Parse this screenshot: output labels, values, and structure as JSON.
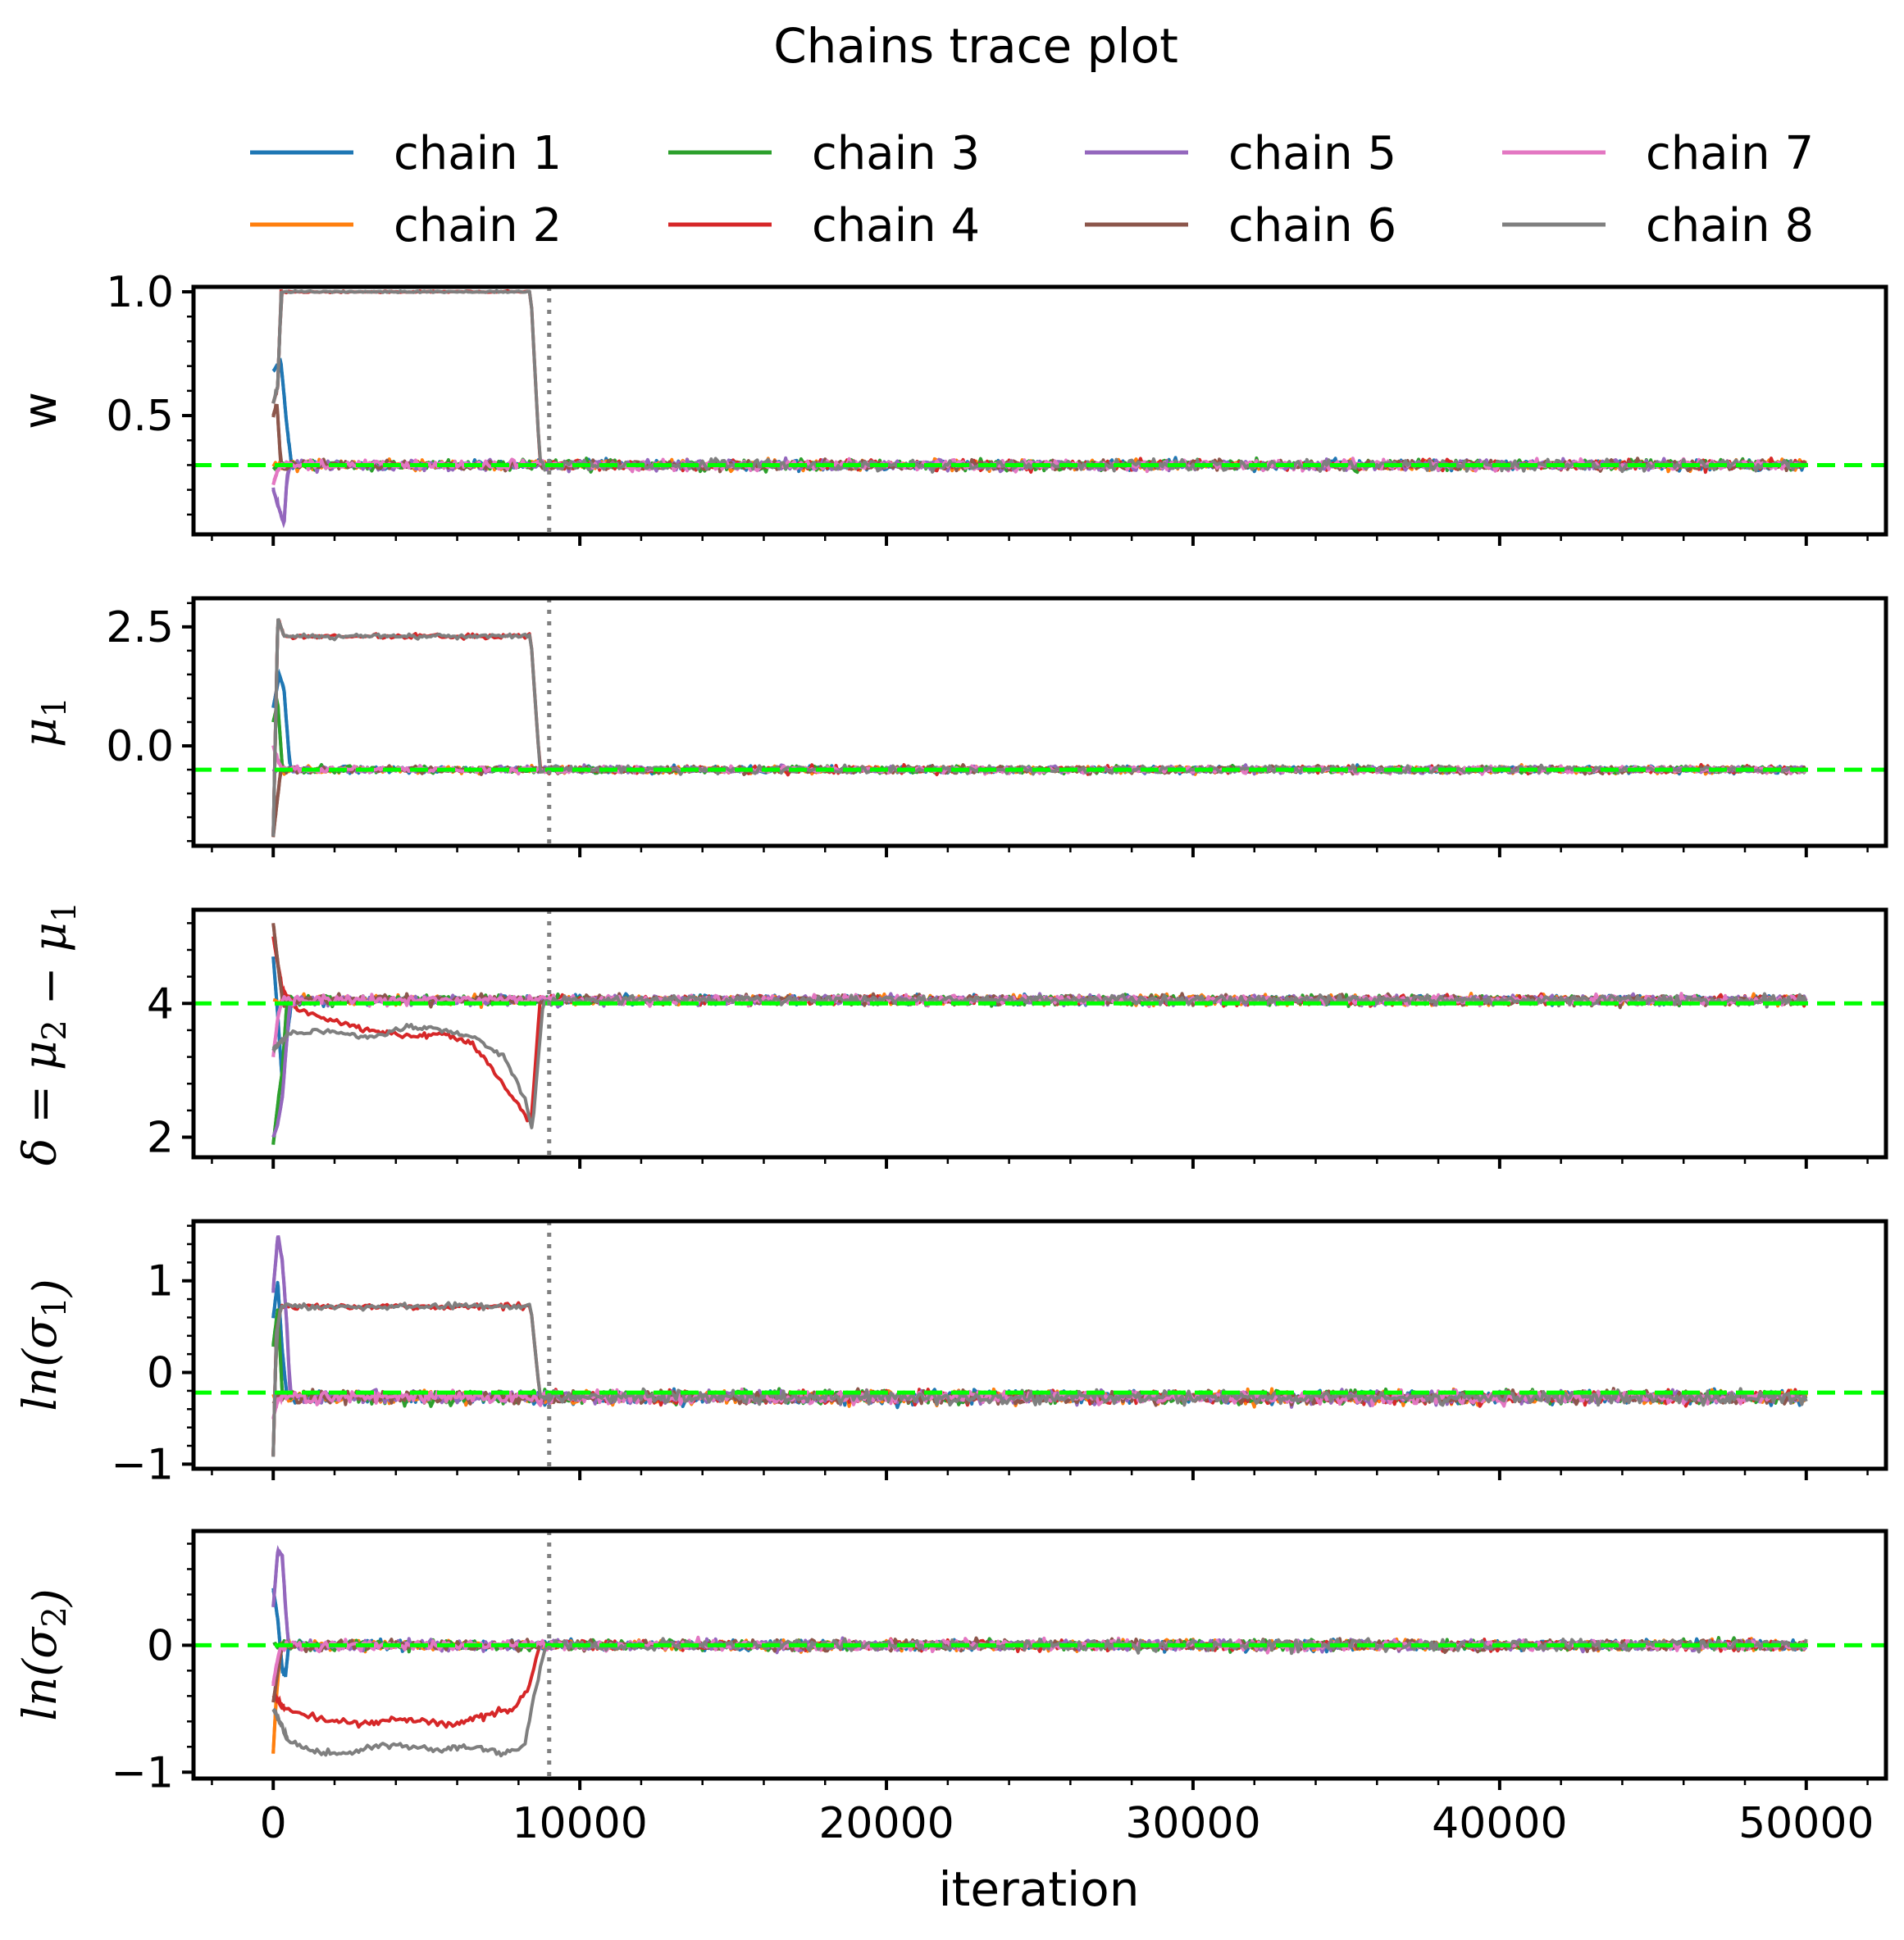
{
  "chart_data": {
    "type": "line",
    "title": "Chains trace plot",
    "xlabel": "iteration",
    "x_ticks": [
      0,
      10000,
      20000,
      30000,
      40000,
      50000
    ],
    "xlim": [
      -2600,
      52600
    ],
    "burn_in_line_x": 9000,
    "grid": false,
    "legend_placement": "top, 4 columns",
    "legend": [
      {
        "name": "chain 1",
        "color": "#1f77b4"
      },
      {
        "name": "chain 2",
        "color": "#ff7f0e"
      },
      {
        "name": "chain 3",
        "color": "#2ca02c"
      },
      {
        "name": "chain 4",
        "color": "#d62728"
      },
      {
        "name": "chain 5",
        "color": "#9467bd"
      },
      {
        "name": "chain 6",
        "color": "#8c564b"
      },
      {
        "name": "chain 7",
        "color": "#e377c2"
      },
      {
        "name": "chain 8",
        "color": "#7f7f7f"
      }
    ],
    "colors": {
      "true_value_line": "#00ff00",
      "burn_in_line": "#808080"
    },
    "panels": [
      {
        "ylabel": "w",
        "ylabel_style": "plain",
        "ylim": [
          0.02,
          1.02
        ],
        "yticks": [
          0.5,
          1.0
        ],
        "ytick_labels": [
          "0.5",
          "1.0"
        ],
        "true_value": 0.3,
        "stationary_level": 0.3,
        "noise_amplitude": 0.02,
        "stuck_level": 1.0,
        "stuck_until": 8400,
        "stuck_noise": 0.003,
        "stuck_chains": [
          "chain 4",
          "chain 8"
        ],
        "stuck_pre_path": [
          [
            0,
            0.55
          ],
          [
            150,
            0.62
          ],
          [
            260,
            1.0
          ]
        ],
        "early_excursions": [
          {
            "chain": "chain 1",
            "path": [
              [
                0,
                0.68
              ],
              [
                250,
                0.72
              ],
              [
                450,
                0.45
              ],
              [
                600,
                0.3
              ]
            ]
          },
          {
            "chain": "chain 5",
            "path": [
              [
                0,
                0.2
              ],
              [
                200,
                0.12
              ],
              [
                350,
                0.06
              ],
              [
                450,
                0.25
              ],
              [
                550,
                0.3
              ]
            ]
          },
          {
            "chain": "chain 6",
            "path": [
              [
                0,
                0.5
              ],
              [
                120,
                0.55
              ],
              [
                250,
                0.3
              ]
            ]
          },
          {
            "chain": "chain 7",
            "path": [
              [
                0,
                0.22
              ],
              [
                150,
                0.28
              ],
              [
                300,
                0.3
              ]
            ]
          }
        ]
      },
      {
        "ylabel": "μ1",
        "ylabel_style": "italic-subscript",
        "ylim": [
          -2.1,
          3.1
        ],
        "yticks": [
          0.0,
          2.5
        ],
        "ytick_labels": [
          "0.0",
          "2.5"
        ],
        "true_value": -0.5,
        "stationary_level": -0.5,
        "noise_amplitude": 0.07,
        "stuck_level": 2.3,
        "stuck_until": 8400,
        "stuck_noise": 0.05,
        "stuck_chains": [
          "chain 4",
          "chain 8"
        ],
        "stuck_pre_path": [
          [
            0,
            -1.9
          ],
          [
            150,
            2.7
          ],
          [
            350,
            2.3
          ]
        ],
        "early_excursions": [
          {
            "chain": "chain 1",
            "path": [
              [
                0,
                0.8
              ],
              [
                200,
                1.5
              ],
              [
                350,
                1.2
              ],
              [
                550,
                -0.5
              ]
            ]
          },
          {
            "chain": "chain 3",
            "path": [
              [
                0,
                0.5
              ],
              [
                150,
                0.9
              ],
              [
                300,
                -0.5
              ]
            ]
          },
          {
            "chain": "chain 6",
            "path": [
              [
                0,
                -1.9
              ],
              [
                120,
                -1.2
              ],
              [
                250,
                -0.5
              ]
            ]
          },
          {
            "chain": "chain 7",
            "path": [
              [
                0,
                0.0
              ],
              [
                150,
                -0.3
              ],
              [
                300,
                -0.5
              ]
            ]
          }
        ]
      },
      {
        "ylabel": "δ = μ2 − μ1",
        "ylabel_style": "italic-subscript",
        "ylim": [
          1.7,
          5.4
        ],
        "yticks": [
          2,
          4
        ],
        "ytick_labels": [
          "2",
          "4"
        ],
        "true_value": 4.0,
        "stationary_level": 4.05,
        "noise_amplitude": 0.07,
        "drift_chains": [
          {
            "chain": "chain 4",
            "path": [
              [
                0,
                5.0
              ],
              [
                300,
                4.2
              ],
              [
                800,
                3.9
              ],
              [
                1500,
                3.8
              ],
              [
                3000,
                3.6
              ],
              [
                4500,
                3.5
              ],
              [
                5500,
                3.55
              ],
              [
                6500,
                3.4
              ],
              [
                7500,
                2.8
              ],
              [
                8100,
                2.4
              ],
              [
                8400,
                2.2
              ],
              [
                8700,
                4.0
              ]
            ]
          },
          {
            "chain": "chain 8",
            "path": [
              [
                0,
                3.3
              ],
              [
                500,
                3.55
              ],
              [
                1500,
                3.6
              ],
              [
                3000,
                3.5
              ],
              [
                4500,
                3.65
              ],
              [
                5500,
                3.6
              ],
              [
                6500,
                3.5
              ],
              [
                7500,
                3.2
              ],
              [
                8200,
                2.6
              ],
              [
                8450,
                2.1
              ],
              [
                8800,
                4.0
              ]
            ]
          }
        ],
        "early_excursions": [
          {
            "chain": "chain 1",
            "path": [
              [
                0,
                4.7
              ],
              [
                150,
                3.8
              ],
              [
                300,
                2.8
              ],
              [
                450,
                3.5
              ],
              [
                600,
                4.05
              ]
            ]
          },
          {
            "chain": "chain 3",
            "path": [
              [
                0,
                1.9
              ],
              [
                150,
                2.5
              ],
              [
                300,
                3.0
              ],
              [
                450,
                4.05
              ]
            ]
          },
          {
            "chain": "chain 5",
            "path": [
              [
                0,
                2.0
              ],
              [
                150,
                2.2
              ],
              [
                300,
                2.6
              ],
              [
                450,
                3.5
              ],
              [
                550,
                4.05
              ]
            ]
          },
          {
            "chain": "chain 6",
            "path": [
              [
                0,
                5.2
              ],
              [
                150,
                4.6
              ],
              [
                300,
                4.05
              ]
            ]
          },
          {
            "chain": "chain 7",
            "path": [
              [
                0,
                3.2
              ],
              [
                150,
                3.8
              ],
              [
                300,
                4.05
              ]
            ]
          }
        ]
      },
      {
        "ylabel": "ln(σ1)",
        "ylabel_style": "italic-subscript",
        "ylim": [
          -1.05,
          1.65
        ],
        "yticks": [
          -1,
          0,
          1
        ],
        "ytick_labels": [
          "−1",
          "0",
          "1"
        ],
        "true_value": -0.22,
        "stationary_level": -0.27,
        "noise_amplitude": 0.07,
        "stuck_level": 0.72,
        "stuck_until": 8400,
        "stuck_noise": 0.03,
        "stuck_chains": [
          "chain 4",
          "chain 8"
        ],
        "stuck_pre_path": [
          [
            0,
            -0.9
          ],
          [
            100,
            0.4
          ],
          [
            250,
            0.72
          ]
        ],
        "early_excursions": [
          {
            "chain": "chain 5",
            "path": [
              [
                0,
                0.9
              ],
              [
                150,
                1.5
              ],
              [
                300,
                1.2
              ],
              [
                450,
                0.5
              ],
              [
                550,
                -0.27
              ]
            ]
          },
          {
            "chain": "chain 1",
            "path": [
              [
                0,
                0.6
              ],
              [
                150,
                1.0
              ],
              [
                300,
                0.2
              ],
              [
                450,
                -0.27
              ]
            ]
          },
          {
            "chain": "chain 3",
            "path": [
              [
                0,
                0.3
              ],
              [
                150,
                0.7
              ],
              [
                300,
                -0.27
              ]
            ]
          },
          {
            "chain": "chain 7",
            "path": [
              [
                0,
                -0.5
              ],
              [
                150,
                -0.3
              ],
              [
                300,
                -0.27
              ]
            ]
          }
        ]
      },
      {
        "ylabel": "ln(σ2)",
        "ylabel_style": "italic-subscript",
        "ylim": [
          -1.05,
          0.9
        ],
        "yticks": [
          -1,
          0
        ],
        "ytick_labels": [
          "−1",
          "0"
        ],
        "true_value": 0.0,
        "stationary_level": 0.0,
        "noise_amplitude": 0.04,
        "drift_chains": [
          {
            "chain": "chain 4",
            "path": [
              [
                0,
                -0.4
              ],
              [
                400,
                -0.5
              ],
              [
                1000,
                -0.55
              ],
              [
                2000,
                -0.6
              ],
              [
                3000,
                -0.62
              ],
              [
                4000,
                -0.58
              ],
              [
                5000,
                -0.6
              ],
              [
                6000,
                -0.62
              ],
              [
                7000,
                -0.55
              ],
              [
                7800,
                -0.5
              ],
              [
                8300,
                -0.35
              ],
              [
                8700,
                0.0
              ]
            ]
          },
          {
            "chain": "chain 8",
            "path": [
              [
                0,
                -0.5
              ],
              [
                500,
                -0.75
              ],
              [
                1500,
                -0.85
              ],
              [
                2500,
                -0.85
              ],
              [
                3500,
                -0.78
              ],
              [
                4500,
                -0.8
              ],
              [
                5500,
                -0.82
              ],
              [
                6500,
                -0.8
              ],
              [
                7500,
                -0.85
              ],
              [
                8200,
                -0.8
              ],
              [
                8500,
                -0.4
              ],
              [
                8900,
                0.0
              ]
            ]
          }
        ],
        "early_excursions": [
          {
            "chain": "chain 5",
            "path": [
              [
                0,
                0.3
              ],
              [
                150,
                0.75
              ],
              [
                300,
                0.7
              ],
              [
                400,
                0.3
              ],
              [
                500,
                0.0
              ]
            ]
          },
          {
            "chain": "chain 1",
            "path": [
              [
                0,
                0.45
              ],
              [
                150,
                0.2
              ],
              [
                300,
                -0.2
              ],
              [
                400,
                -0.25
              ],
              [
                500,
                0.0
              ]
            ]
          },
          {
            "chain": "chain 2",
            "path": [
              [
                0,
                -0.85
              ],
              [
                100,
                -0.4
              ],
              [
                250,
                0.0
              ]
            ]
          },
          {
            "chain": "chain 6",
            "path": [
              [
                0,
                -0.45
              ],
              [
                150,
                -0.2
              ],
              [
                300,
                0.0
              ]
            ]
          },
          {
            "chain": "chain 7",
            "path": [
              [
                0,
                -0.3
              ],
              [
                150,
                -0.1
              ],
              [
                250,
                0.0
              ]
            ]
          }
        ]
      }
    ]
  }
}
